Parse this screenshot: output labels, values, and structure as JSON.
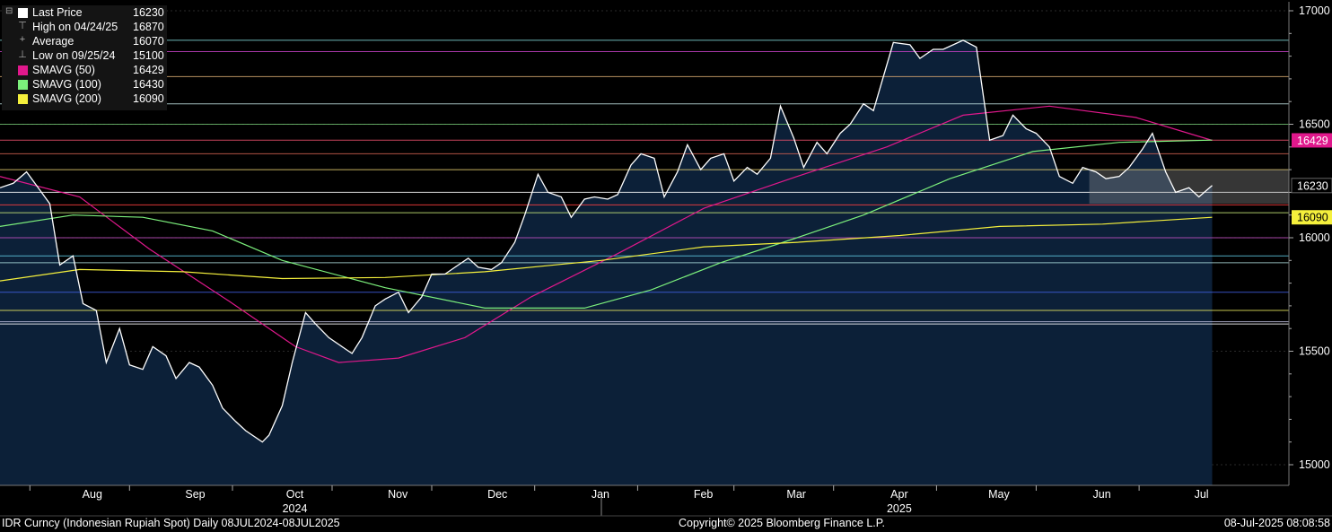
{
  "chart_data": {
    "type": "line",
    "y_ticks": [
      15000,
      15500,
      16000,
      16500,
      17000
    ],
    "x_month_labels": [
      "Aug",
      "Sep",
      "Oct",
      "Nov",
      "Dec",
      "Jan",
      "Feb",
      "Mar",
      "Apr",
      "May",
      "Jun",
      "Jul"
    ],
    "x_year_labels": [
      "2024",
      "2025"
    ],
    "legend": [
      {
        "label": "Last Price",
        "value": "16230",
        "color": "#ffffff",
        "icon": "square"
      },
      {
        "label": "High on 04/24/25",
        "value": "16870",
        "color": "#aaaaaa",
        "icon": "high-marker"
      },
      {
        "label": "Average",
        "value": "16070",
        "color": "#aaaaaa",
        "icon": "average-marker"
      },
      {
        "label": "Low on 09/25/24",
        "value": "15100",
        "color": "#aaaaaa",
        "icon": "low-marker"
      },
      {
        "label": "SMAVG (50)",
        "value": "16429",
        "color": "#e0188c",
        "icon": "square"
      },
      {
        "label": "SMAVG (100)",
        "value": "16430",
        "color": "#7cf07c",
        "icon": "square"
      },
      {
        "label": "SMAVG (200)",
        "value": "16090",
        "color": "#f5f03c",
        "icon": "square"
      }
    ],
    "right_tags": [
      {
        "value": "16429",
        "bg": "#e0188c",
        "fg": "#ffffff"
      },
      {
        "value": "16230",
        "bg": "#000000",
        "fg": "#ffffff"
      },
      {
        "value": "16090",
        "bg": "#f5f03c",
        "fg": "#000000"
      }
    ],
    "price_series": [
      {
        "date": "2024-07-08",
        "value": 16220
      },
      {
        "date": "2024-07-12",
        "value": 16240
      },
      {
        "date": "2024-07-16",
        "value": 16290
      },
      {
        "date": "2024-07-19",
        "value": 16230
      },
      {
        "date": "2024-07-23",
        "value": 16150
      },
      {
        "date": "2024-07-26",
        "value": 15880
      },
      {
        "date": "2024-07-30",
        "value": 15920
      },
      {
        "date": "2024-08-02",
        "value": 15710
      },
      {
        "date": "2024-08-06",
        "value": 15680
      },
      {
        "date": "2024-08-09",
        "value": 15450
      },
      {
        "date": "2024-08-13",
        "value": 15600
      },
      {
        "date": "2024-08-16",
        "value": 15440
      },
      {
        "date": "2024-08-20",
        "value": 15420
      },
      {
        "date": "2024-08-23",
        "value": 15520
      },
      {
        "date": "2024-08-27",
        "value": 15480
      },
      {
        "date": "2024-08-30",
        "value": 15380
      },
      {
        "date": "2024-09-03",
        "value": 15450
      },
      {
        "date": "2024-09-06",
        "value": 15430
      },
      {
        "date": "2024-09-10",
        "value": 15350
      },
      {
        "date": "2024-09-13",
        "value": 15250
      },
      {
        "date": "2024-09-17",
        "value": 15190
      },
      {
        "date": "2024-09-20",
        "value": 15150
      },
      {
        "date": "2024-09-25",
        "value": 15100
      },
      {
        "date": "2024-09-27",
        "value": 15130
      },
      {
        "date": "2024-10-01",
        "value": 15260
      },
      {
        "date": "2024-10-04",
        "value": 15450
      },
      {
        "date": "2024-10-08",
        "value": 15670
      },
      {
        "date": "2024-10-11",
        "value": 15620
      },
      {
        "date": "2024-10-15",
        "value": 15560
      },
      {
        "date": "2024-10-18",
        "value": 15530
      },
      {
        "date": "2024-10-22",
        "value": 15490
      },
      {
        "date": "2024-10-25",
        "value": 15560
      },
      {
        "date": "2024-10-29",
        "value": 15700
      },
      {
        "date": "2024-11-01",
        "value": 15730
      },
      {
        "date": "2024-11-05",
        "value": 15760
      },
      {
        "date": "2024-11-08",
        "value": 15670
      },
      {
        "date": "2024-11-12",
        "value": 15740
      },
      {
        "date": "2024-11-15",
        "value": 15840
      },
      {
        "date": "2024-11-19",
        "value": 15840
      },
      {
        "date": "2024-11-22",
        "value": 15870
      },
      {
        "date": "2024-11-26",
        "value": 15910
      },
      {
        "date": "2024-11-29",
        "value": 15870
      },
      {
        "date": "2024-12-03",
        "value": 15860
      },
      {
        "date": "2024-12-06",
        "value": 15890
      },
      {
        "date": "2024-12-10",
        "value": 15980
      },
      {
        "date": "2024-12-13",
        "value": 16100
      },
      {
        "date": "2024-12-17",
        "value": 16280
      },
      {
        "date": "2024-12-20",
        "value": 16200
      },
      {
        "date": "2024-12-24",
        "value": 16180
      },
      {
        "date": "2024-12-27",
        "value": 16090
      },
      {
        "date": "2024-12-31",
        "value": 16170
      },
      {
        "date": "2025-01-03",
        "value": 16180
      },
      {
        "date": "2025-01-07",
        "value": 16170
      },
      {
        "date": "2025-01-10",
        "value": 16190
      },
      {
        "date": "2025-01-14",
        "value": 16320
      },
      {
        "date": "2025-01-17",
        "value": 16370
      },
      {
        "date": "2025-01-21",
        "value": 16350
      },
      {
        "date": "2025-01-24",
        "value": 16180
      },
      {
        "date": "2025-01-28",
        "value": 16290
      },
      {
        "date": "2025-01-31",
        "value": 16410
      },
      {
        "date": "2025-02-04",
        "value": 16300
      },
      {
        "date": "2025-02-07",
        "value": 16350
      },
      {
        "date": "2025-02-11",
        "value": 16370
      },
      {
        "date": "2025-02-14",
        "value": 16250
      },
      {
        "date": "2025-02-18",
        "value": 16310
      },
      {
        "date": "2025-02-21",
        "value": 16280
      },
      {
        "date": "2025-02-25",
        "value": 16350
      },
      {
        "date": "2025-02-28",
        "value": 16580
      },
      {
        "date": "2025-03-04",
        "value": 16440
      },
      {
        "date": "2025-03-07",
        "value": 16310
      },
      {
        "date": "2025-03-11",
        "value": 16420
      },
      {
        "date": "2025-03-14",
        "value": 16370
      },
      {
        "date": "2025-03-18",
        "value": 16460
      },
      {
        "date": "2025-03-21",
        "value": 16500
      },
      {
        "date": "2025-03-25",
        "value": 16590
      },
      {
        "date": "2025-03-28",
        "value": 16560
      },
      {
        "date": "2025-04-03",
        "value": 16860
      },
      {
        "date": "2025-04-08",
        "value": 16850
      },
      {
        "date": "2025-04-11",
        "value": 16790
      },
      {
        "date": "2025-04-15",
        "value": 16830
      },
      {
        "date": "2025-04-18",
        "value": 16830
      },
      {
        "date": "2025-04-24",
        "value": 16870
      },
      {
        "date": "2025-04-28",
        "value": 16840
      },
      {
        "date": "2025-05-02",
        "value": 16430
      },
      {
        "date": "2025-05-06",
        "value": 16450
      },
      {
        "date": "2025-05-09",
        "value": 16540
      },
      {
        "date": "2025-05-13",
        "value": 16480
      },
      {
        "date": "2025-05-16",
        "value": 16460
      },
      {
        "date": "2025-05-20",
        "value": 16400
      },
      {
        "date": "2025-05-23",
        "value": 16270
      },
      {
        "date": "2025-05-27",
        "value": 16240
      },
      {
        "date": "2025-05-30",
        "value": 16310
      },
      {
        "date": "2025-06-03",
        "value": 16290
      },
      {
        "date": "2025-06-06",
        "value": 16260
      },
      {
        "date": "2025-06-10",
        "value": 16270
      },
      {
        "date": "2025-06-13",
        "value": 16310
      },
      {
        "date": "2025-06-17",
        "value": 16390
      },
      {
        "date": "2025-06-20",
        "value": 16460
      },
      {
        "date": "2025-06-24",
        "value": 16290
      },
      {
        "date": "2025-06-27",
        "value": 16200
      },
      {
        "date": "2025-07-01",
        "value": 16220
      },
      {
        "date": "2025-07-04",
        "value": 16180
      },
      {
        "date": "2025-07-08",
        "value": 16230
      }
    ],
    "series": [
      {
        "name": "SMAVG (50)",
        "color": "#e0188c",
        "points": [
          {
            "date": "2024-07-08",
            "value": 16270
          },
          {
            "date": "2024-08-01",
            "value": 16180
          },
          {
            "date": "2024-08-22",
            "value": 15950
          },
          {
            "date": "2024-09-15",
            "value": 15720
          },
          {
            "date": "2024-10-05",
            "value": 15520
          },
          {
            "date": "2024-10-18",
            "value": 15450
          },
          {
            "date": "2024-11-05",
            "value": 15470
          },
          {
            "date": "2024-11-25",
            "value": 15560
          },
          {
            "date": "2024-12-15",
            "value": 15740
          },
          {
            "date": "2025-01-10",
            "value": 15930
          },
          {
            "date": "2025-02-05",
            "value": 16130
          },
          {
            "date": "2025-03-05",
            "value": 16270
          },
          {
            "date": "2025-04-01",
            "value": 16400
          },
          {
            "date": "2025-04-24",
            "value": 16540
          },
          {
            "date": "2025-05-20",
            "value": 16580
          },
          {
            "date": "2025-06-15",
            "value": 16530
          },
          {
            "date": "2025-07-08",
            "value": 16429
          }
        ]
      },
      {
        "name": "SMAVG (100)",
        "color": "#7cf07c",
        "points": [
          {
            "date": "2024-07-08",
            "value": 16050
          },
          {
            "date": "2024-07-30",
            "value": 16100
          },
          {
            "date": "2024-08-20",
            "value": 16090
          },
          {
            "date": "2024-09-10",
            "value": 16030
          },
          {
            "date": "2024-10-01",
            "value": 15900
          },
          {
            "date": "2024-11-01",
            "value": 15780
          },
          {
            "date": "2024-12-01",
            "value": 15690
          },
          {
            "date": "2024-12-31",
            "value": 15690
          },
          {
            "date": "2025-01-20",
            "value": 15770
          },
          {
            "date": "2025-02-10",
            "value": 15890
          },
          {
            "date": "2025-03-05",
            "value": 16000
          },
          {
            "date": "2025-03-25",
            "value": 16100
          },
          {
            "date": "2025-04-20",
            "value": 16260
          },
          {
            "date": "2025-05-15",
            "value": 16380
          },
          {
            "date": "2025-06-10",
            "value": 16420
          },
          {
            "date": "2025-07-08",
            "value": 16430
          }
        ]
      },
      {
        "name": "SMAVG (200)",
        "color": "#f5f03c",
        "points": [
          {
            "date": "2024-07-08",
            "value": 15810
          },
          {
            "date": "2024-08-01",
            "value": 15860
          },
          {
            "date": "2024-09-01",
            "value": 15850
          },
          {
            "date": "2024-10-01",
            "value": 15820
          },
          {
            "date": "2024-11-01",
            "value": 15825
          },
          {
            "date": "2024-12-01",
            "value": 15850
          },
          {
            "date": "2025-01-05",
            "value": 15900
          },
          {
            "date": "2025-02-05",
            "value": 15960
          },
          {
            "date": "2025-03-05",
            "value": 15980
          },
          {
            "date": "2025-04-05",
            "value": 16010
          },
          {
            "date": "2025-05-05",
            "value": 16050
          },
          {
            "date": "2025-06-05",
            "value": 16060
          },
          {
            "date": "2025-07-08",
            "value": 16090
          }
        ]
      }
    ],
    "horizontal_levels": [
      {
        "value": 16870,
        "color": "#7fd8d8"
      },
      {
        "value": 16820,
        "color": "#c040c0"
      },
      {
        "value": 16710,
        "color": "#d8a870"
      },
      {
        "value": 16590,
        "color": "#bfe0e0"
      },
      {
        "value": 16500,
        "color": "#70c070"
      },
      {
        "value": 16430,
        "color": "#e8506a"
      },
      {
        "value": 16370,
        "color": "#d06050"
      },
      {
        "value": 16300,
        "color": "#e8d070"
      },
      {
        "value": 16200,
        "color": "#ffffff"
      },
      {
        "value": 16145,
        "color": "#ff4040"
      },
      {
        "value": 16110,
        "color": "#c8e878"
      },
      {
        "value": 16000,
        "color": "#c050c0"
      },
      {
        "value": 15920,
        "color": "#60c8e0"
      },
      {
        "value": 15890,
        "color": "#a8d8d8"
      },
      {
        "value": 15760,
        "color": "#4060e0"
      },
      {
        "value": 15680,
        "color": "#e8e860"
      },
      {
        "value": 15630,
        "color": "#c0c0e0"
      },
      {
        "value": 15620,
        "color": "#ffffff"
      }
    ],
    "ylim": [
      14920,
      17020
    ]
  },
  "footer": {
    "left": "IDR Curncy (Indonesian Rupiah Spot)  Daily 08JUL2024-08JUL2025",
    "center": "Copyright© 2025 Bloomberg Finance L.P.",
    "right": "08-Jul-2025 08:08:58"
  },
  "colors": {
    "background": "#000000",
    "area_fill": "#0c2038",
    "price_line": "#ffffff",
    "grid": "#2a2a2a"
  }
}
